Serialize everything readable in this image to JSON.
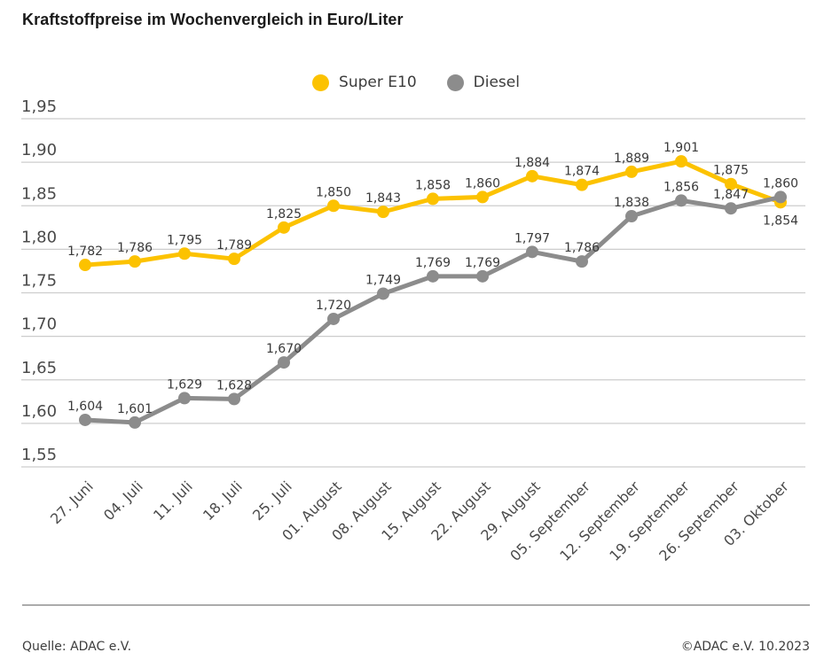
{
  "page": {
    "title": "Kraftstoffpreise im Wochenvergleich in Euro/Liter",
    "source": "Quelle: ADAC e.V.",
    "copyright": "©ADAC e.V. 10.2023"
  },
  "legend": {
    "items": [
      {
        "label": "Super E10",
        "color": "#FCC200",
        "icon": "circle-marker-icon"
      },
      {
        "label": "Diesel",
        "color": "#8C8C8C",
        "icon": "circle-marker-icon"
      }
    ]
  },
  "colors": {
    "super_e10": "#FCC200",
    "diesel": "#8C8C8C",
    "grid": "#CDCDCD",
    "axis_text": "#4A4A4A",
    "data_label_text": "#3A3A3A"
  },
  "chart_data": {
    "type": "line",
    "title": "Kraftstoffpreise im Wochenvergleich in Euro/Liter",
    "unit": "Euro/Liter",
    "grid": true,
    "legend_position": "top",
    "ylim": [
      1.55,
      1.95
    ],
    "yticks": [
      1.95,
      1.9,
      1.85,
      1.8,
      1.75,
      1.7,
      1.65,
      1.6,
      1.55
    ],
    "categories": [
      "27. Juni",
      "04. Juli",
      "11. Juli",
      "18. Juli",
      "25. Juli",
      "01. August",
      "08. August",
      "15. August",
      "22. August",
      "29. August",
      "05. September",
      "12. September",
      "19. September",
      "26. September",
      "03. Oktober"
    ],
    "series": [
      {
        "name": "Super E10",
        "color": "#FCC200",
        "values": [
          1.782,
          1.786,
          1.795,
          1.789,
          1.825,
          1.85,
          1.843,
          1.858,
          1.86,
          1.884,
          1.874,
          1.889,
          1.901,
          1.875,
          1.854
        ],
        "labels": [
          "1,782",
          "1,786",
          "1,795",
          "1,789",
          "1,825",
          "1,850",
          "1,843",
          "1,858",
          "1,860",
          "1,884",
          "1,874",
          "1,889",
          "1,901",
          "1,875",
          "1,854"
        ]
      },
      {
        "name": "Diesel",
        "color": "#8C8C8C",
        "values": [
          1.604,
          1.601,
          1.629,
          1.628,
          1.67,
          1.72,
          1.749,
          1.769,
          1.769,
          1.797,
          1.786,
          1.838,
          1.856,
          1.847,
          1.86
        ],
        "labels": [
          "1,604",
          "1,601",
          "1,629",
          "1,628",
          "1,670",
          "1,720",
          "1,749",
          "1,769",
          "1,769",
          "1,797",
          "1,786",
          "1,838",
          "1,856",
          "1,847",
          "1,860"
        ]
      }
    ]
  }
}
